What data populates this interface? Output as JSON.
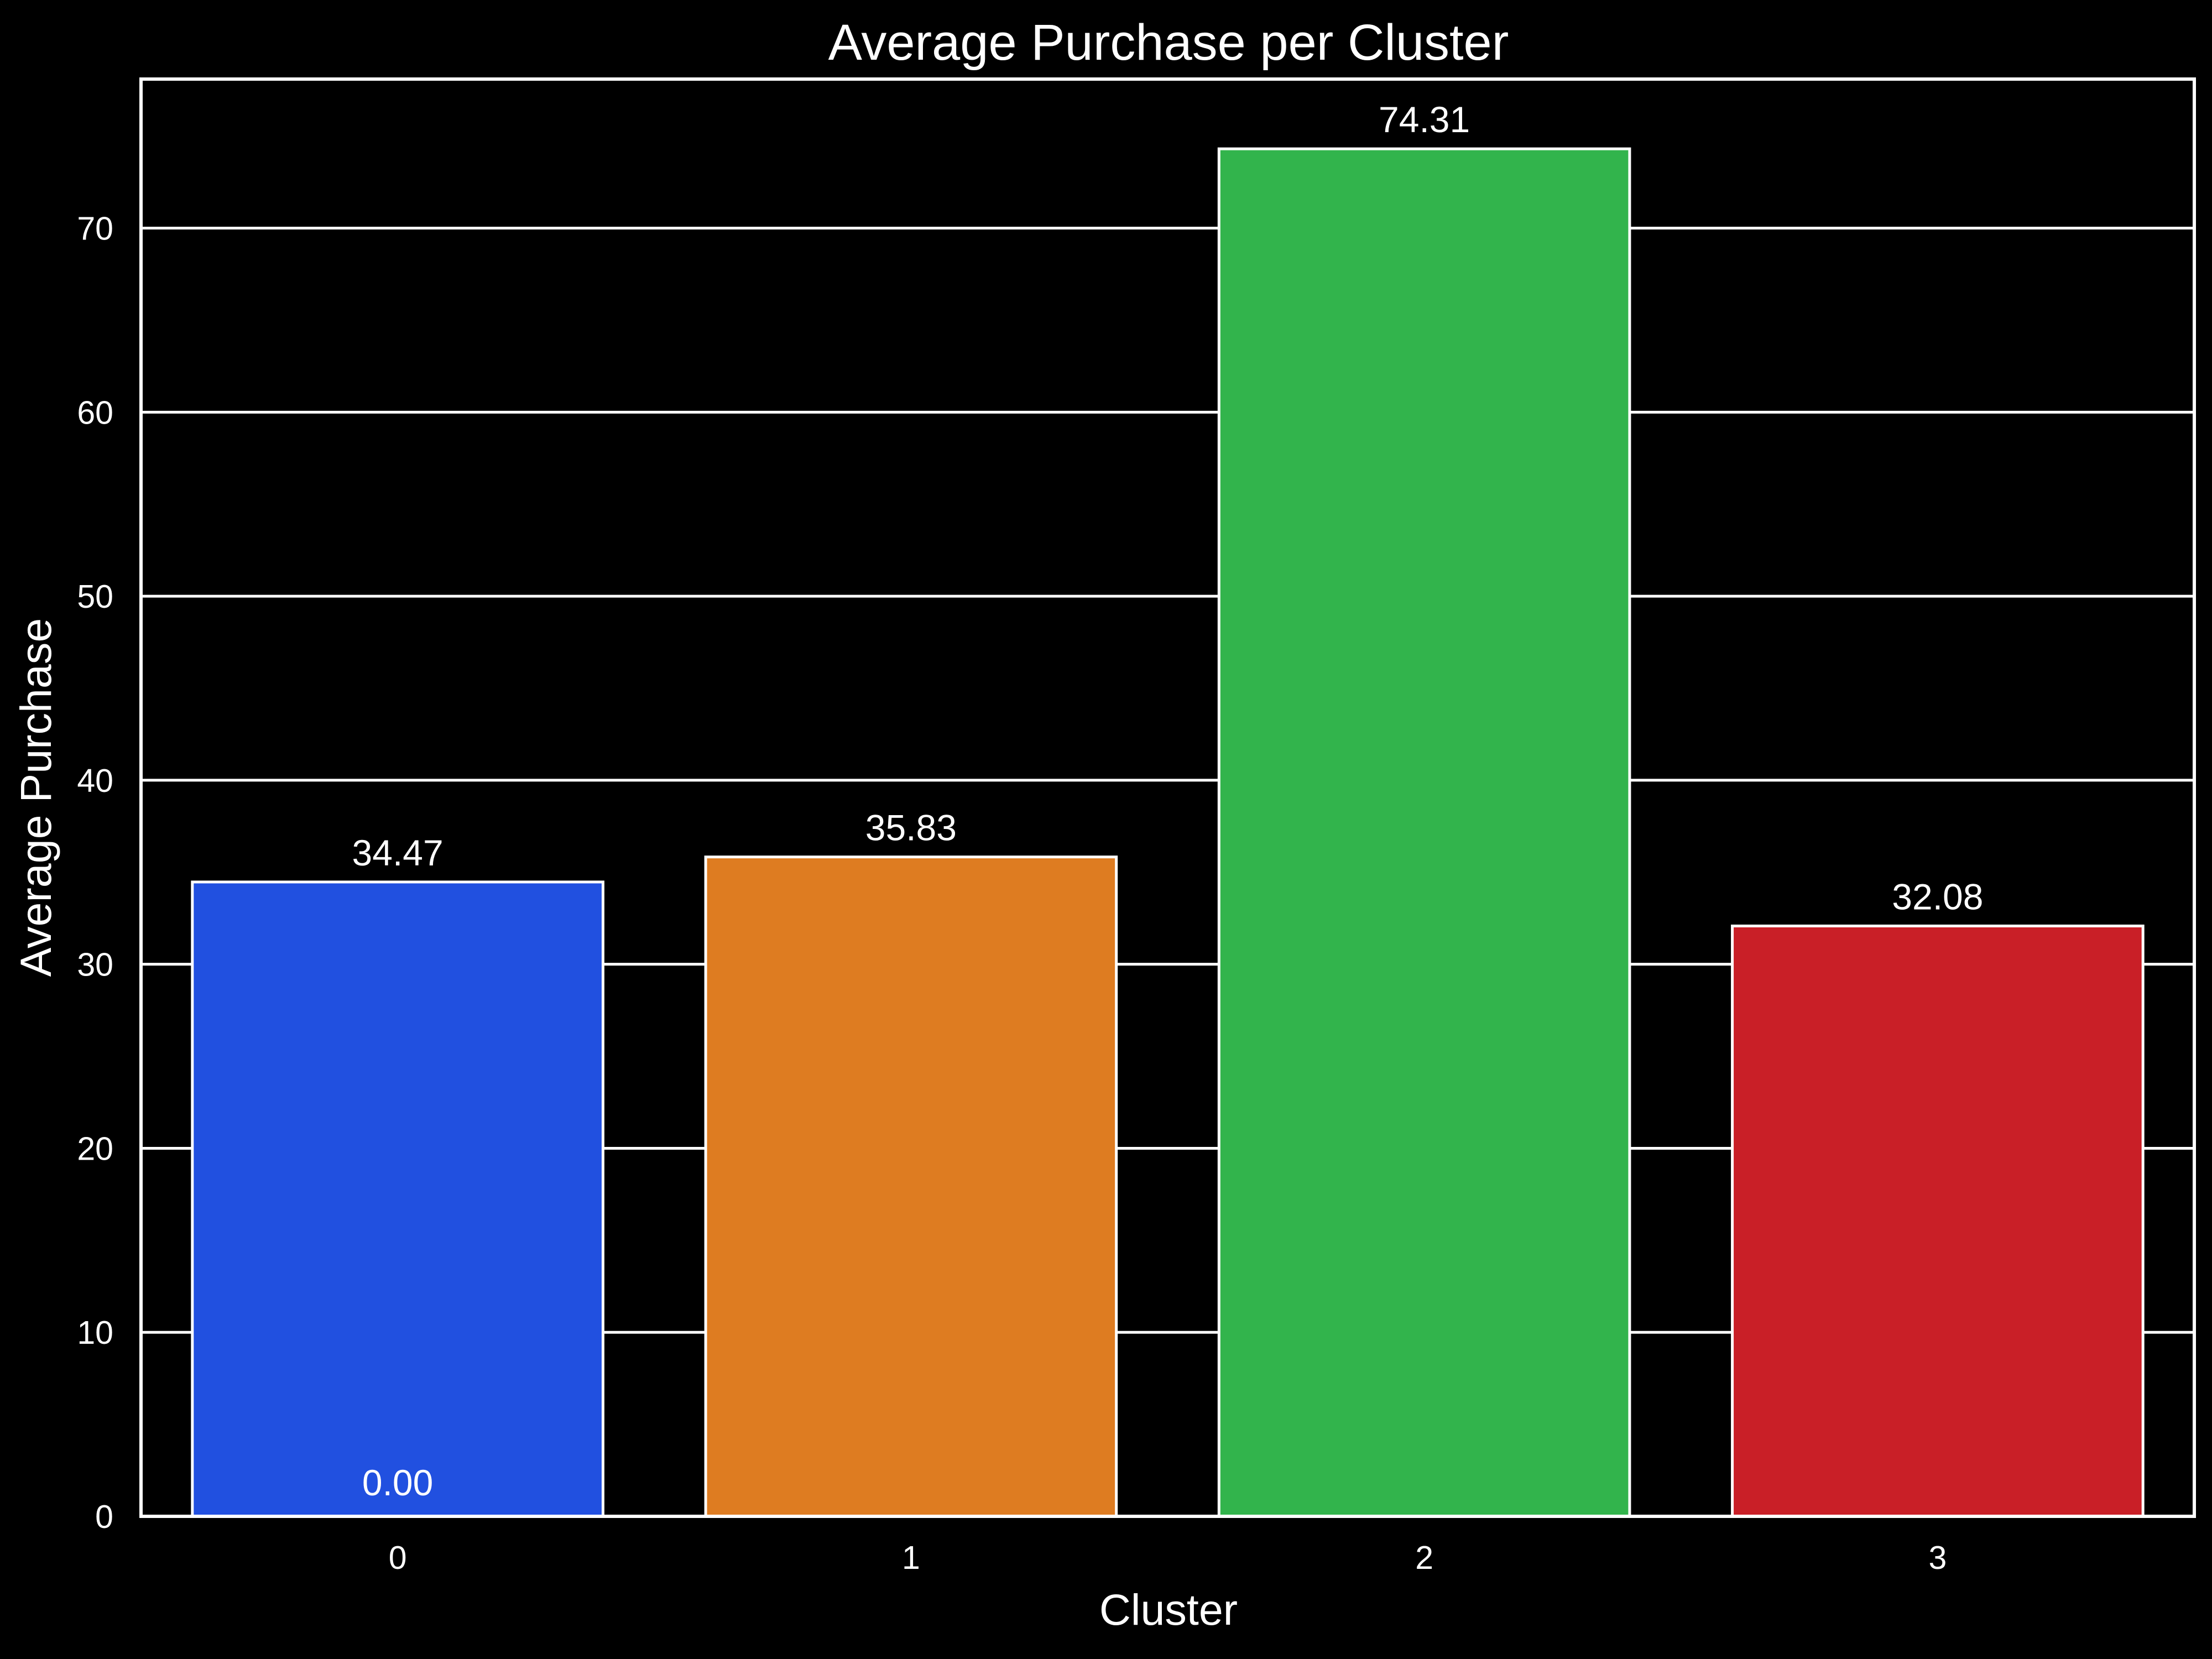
{
  "chart_data": {
    "type": "bar",
    "title": "Average Purchase per Cluster",
    "xlabel": "Cluster",
    "ylabel": "Average Purchase",
    "categories": [
      "0",
      "1",
      "2",
      "3"
    ],
    "values": [
      34.47,
      35.83,
      74.31,
      32.08
    ],
    "value_labels": [
      "34.47",
      "35.83",
      "74.31",
      "32.08"
    ],
    "extra_annotations": [
      {
        "category": "0",
        "text": "0.00",
        "value": 0
      }
    ],
    "bar_colors": [
      "#2150e0",
      "#de7c21",
      "#32b44c",
      "#c91f27"
    ],
    "ylim": [
      0,
      78.1
    ],
    "yticks": [
      0,
      10,
      20,
      30,
      40,
      50,
      60,
      70
    ],
    "ytick_labels": [
      "0",
      "10",
      "20",
      "30",
      "40",
      "50",
      "60",
      "70"
    ],
    "grid": "horizontal",
    "background": "#000000",
    "foreground": "#ffffff"
  }
}
